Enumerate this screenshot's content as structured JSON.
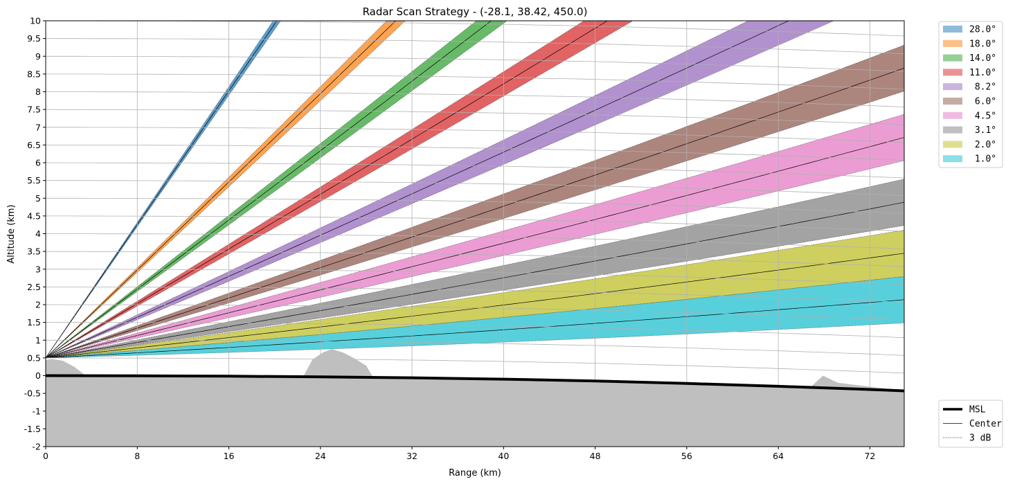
{
  "chart_data": {
    "type": "area",
    "title": "Radar Scan Strategy - (-28.1, 38.42, 450.0)",
    "xlabel": "Range (km)",
    "ylabel": "Altitude (km)",
    "xlim": [
      0,
      75
    ],
    "ylim": [
      -2,
      10
    ],
    "x_ticks": [
      "0",
      "8",
      "16",
      "24",
      "32",
      "40",
      "48",
      "56",
      "64",
      "72"
    ],
    "y_ticks": [
      "-2",
      "-1.5",
      "-1",
      "-0.5",
      "0",
      "0.5",
      "1",
      "1.5",
      "2",
      "2.5",
      "3",
      "3.5",
      "4",
      "4.5",
      "5",
      "5.5",
      "6",
      "6.5",
      "7",
      "7.5",
      "8",
      "8.5",
      "9",
      "9.5",
      "10"
    ],
    "grid": true,
    "radar_altitude_km": 0.5,
    "beamwidth_deg": 1.0,
    "series": [
      {
        "name": "28.0°",
        "elevation_deg": 28.0,
        "color": "#1f77b4"
      },
      {
        "name": "18.0°",
        "elevation_deg": 18.0,
        "color": "#ff7f0e"
      },
      {
        "name": "14.0°",
        "elevation_deg": 14.0,
        "color": "#2ca02c"
      },
      {
        "name": "11.0°",
        "elevation_deg": 11.0,
        "color": "#d62728"
      },
      {
        "name": " 8.2°",
        "elevation_deg": 8.2,
        "color": "#9467bd"
      },
      {
        "name": " 6.0°",
        "elevation_deg": 6.0,
        "color": "#8c564b"
      },
      {
        "name": " 4.5°",
        "elevation_deg": 4.5,
        "color": "#e377c2"
      },
      {
        "name": " 3.1°",
        "elevation_deg": 3.1,
        "color": "#7f7f7f"
      },
      {
        "name": " 2.0°",
        "elevation_deg": 2.0,
        "color": "#bcbd22"
      },
      {
        "name": " 1.0°",
        "elevation_deg": 1.0,
        "color": "#17becf"
      }
    ],
    "msl_curve": {
      "x": [
        0,
        8,
        16,
        24,
        32,
        40,
        48,
        56,
        64,
        72,
        75
      ],
      "y": [
        0,
        -0.005,
        -0.015,
        -0.035,
        -0.06,
        -0.1,
        -0.15,
        -0.22,
        -0.3,
        -0.39,
        -0.43
      ]
    },
    "terrain": {
      "x": [
        0,
        0.5,
        1.5,
        2.5,
        3.5,
        22.5,
        23.3,
        24.2,
        25.0,
        26.0,
        27.0,
        28.0,
        28.6,
        66.8,
        67.9,
        69.2,
        75
      ],
      "y": [
        0.44,
        0.47,
        0.42,
        0.25,
        0.0,
        -0.03,
        0.45,
        0.65,
        0.75,
        0.65,
        0.48,
        0.28,
        -0.05,
        -0.33,
        -0.0,
        -0.2,
        -0.43
      ]
    },
    "line_legend": [
      {
        "name": "MSL",
        "style": "thick solid"
      },
      {
        "name": "Center",
        "style": "thin solid"
      },
      {
        "name": "3 dB",
        "style": "dotted"
      }
    ]
  }
}
